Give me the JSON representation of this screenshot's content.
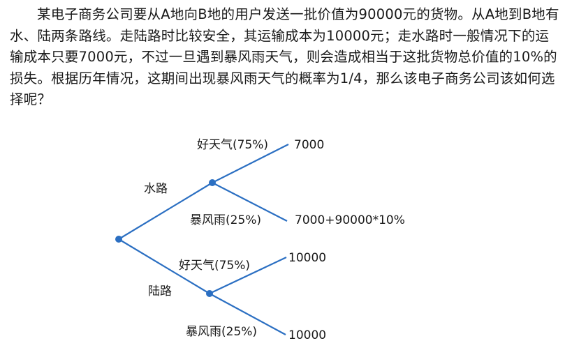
{
  "problem": "某电子商务公司要从A地向B地的用户发送一批价值为90000元的货物。从A地到B地有水、陆两条路线。走陆路时比较安全，其运输成本为10000元；走水路时一般情况下的运输成本只要7000元，不过一旦遇到暴风雨天气，则会造成相当于这批货物总价值的10%的损失。根据历年情况，这期间出现暴风雨天气的概率为1/4，那么该电子商务公司该如何选择呢？",
  "tree": {
    "routes": [
      {
        "label": "水路",
        "outcomes": [
          {
            "condition": "好天气(75%)",
            "cost": "7000"
          },
          {
            "condition": "暴风雨(25%)",
            "cost": "7000+90000*10%"
          }
        ]
      },
      {
        "label": "陆路",
        "outcomes": [
          {
            "condition": "好天气(75%)",
            "cost": "10000"
          },
          {
            "condition": "暴风雨(25%)",
            "cost": "10000"
          }
        ]
      }
    ],
    "colors": {
      "branch": "#2b6fc2",
      "text": "#1a1a1a"
    }
  }
}
